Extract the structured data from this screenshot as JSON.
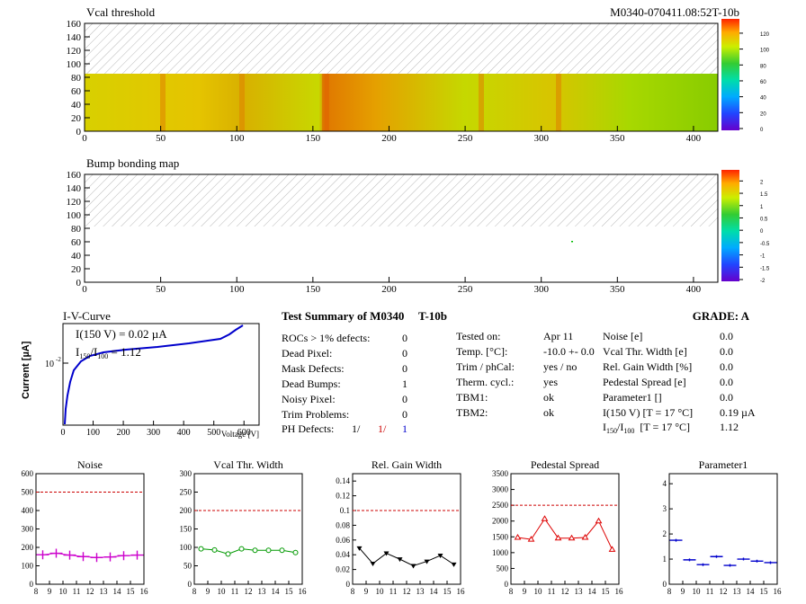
{
  "header": {
    "module_id": "M0340-070411.08:52T-10b"
  },
  "maps": [
    {
      "title": "Vcal threshold",
      "xticks": [
        "0",
        "50",
        "100",
        "150",
        "200",
        "250",
        "300",
        "350",
        "400"
      ],
      "yticks": [
        "0",
        "20",
        "40",
        "60",
        "80",
        "100",
        "120",
        "140",
        "160"
      ],
      "palette_ticks": [
        "0",
        "20",
        "40",
        "60",
        "80",
        "100",
        "120"
      ],
      "xlim": [
        0,
        416
      ],
      "ylim": [
        0,
        160
      ]
    },
    {
      "title": "Bump bonding map",
      "xticks": [
        "0",
        "50",
        "100",
        "150",
        "200",
        "250",
        "300",
        "350",
        "400"
      ],
      "yticks": [
        "0",
        "20",
        "40",
        "60",
        "80",
        "100",
        "120",
        "140",
        "160"
      ],
      "palette_ticks": [
        "-2",
        "-1.5",
        "-1",
        "-0.5",
        "0",
        "0.5",
        "1",
        "1.5",
        "2"
      ],
      "xlim": [
        0,
        416
      ],
      "ylim": [
        0,
        160
      ]
    }
  ],
  "iv": {
    "title": "I-V-Curve",
    "ylabel": "Current [µA]",
    "xlabel": "Voltage [V]",
    "ytick": "10",
    "ytick_exp": "-2",
    "xticks": [
      "0",
      "100",
      "200",
      "300",
      "400",
      "500",
      "600"
    ],
    "annot1": "I(150 V) = 0.02 µA",
    "annot2_a": "I",
    "annot2_sub1": "150",
    "annot2_b": "/I",
    "annot2_sub2": "100",
    "annot2_c": " =  1.12"
  },
  "summary": {
    "title": "Test Summary of M0340",
    "tag": "T-10b",
    "grade": "GRADE:  A",
    "rows": [
      {
        "label": "ROCs > 1% defects:",
        "value": "0"
      },
      {
        "label": "Dead Pixel:",
        "value": "0"
      },
      {
        "label": "Mask Defects:",
        "value": "0"
      },
      {
        "label": "Dead Bumps:",
        "value": "1"
      },
      {
        "label": "Noisy Pixel:",
        "value": "0"
      },
      {
        "label": "Trim Problems:",
        "value": "0"
      }
    ],
    "ph_label": "PH Defects:",
    "ph_vals": [
      "1/",
      "1/",
      "1"
    ],
    "mid": [
      {
        "label": "Tested on:",
        "value": "Apr 11"
      },
      {
        "label": "Temp. [°C]:",
        "value": "-10.0 +- 0.0"
      },
      {
        "label": "Trim / phCal:",
        "value": "yes / no"
      },
      {
        "label": "Therm. cycl.:",
        "value": "yes"
      },
      {
        "label": "TBM1:",
        "value": "ok"
      },
      {
        "label": "TBM2:",
        "value": "ok"
      }
    ],
    "right": [
      {
        "label": "Noise [e]",
        "value": "0.0"
      },
      {
        "label": "Vcal Thr. Width [e]",
        "value": "0.0"
      },
      {
        "label": "Rel. Gain Width [%]",
        "value": "0.0"
      },
      {
        "label": "Pedestal Spread [e]",
        "value": "0.0"
      },
      {
        "label": "Parameter1 []",
        "value": "0.0"
      },
      {
        "label": "I(150 V) [T = 17 °C]",
        "value": "0.19 µA"
      }
    ],
    "ratio_value": "1.12",
    "ratio_tail": "[T = 17 °C]"
  },
  "chart_data": [
    {
      "type": "line",
      "title": "Noise",
      "x": [
        8.5,
        9.5,
        10.5,
        11.5,
        12.5,
        13.5,
        14.5,
        15.5
      ],
      "values": [
        160,
        168,
        158,
        150,
        145,
        148,
        155,
        158
      ],
      "ylim": [
        0,
        600
      ],
      "xlim": [
        8,
        16
      ],
      "yticks": [
        "0",
        "100",
        "200",
        "300",
        "400",
        "500",
        "600"
      ],
      "xticks": [
        "8",
        "9",
        "10",
        "11",
        "12",
        "13",
        "14",
        "15",
        "16"
      ],
      "ref": 500,
      "color": "#cc00cc",
      "marker": "plus"
    },
    {
      "type": "line",
      "title": "Vcal Thr. Width",
      "x": [
        8.5,
        9.5,
        10.5,
        11.5,
        12.5,
        13.5,
        14.5,
        15.5
      ],
      "values": [
        96,
        93,
        82,
        96,
        92,
        92,
        92,
        86
      ],
      "ylim": [
        0,
        300
      ],
      "xlim": [
        8,
        16
      ],
      "yticks": [
        "0",
        "50",
        "100",
        "150",
        "200",
        "250",
        "300"
      ],
      "xticks": [
        "8",
        "9",
        "10",
        "11",
        "12",
        "13",
        "14",
        "15",
        "16"
      ],
      "ref": 200,
      "color": "#009900",
      "marker": "circle"
    },
    {
      "type": "line",
      "title": "Rel. Gain Width",
      "x": [
        8.5,
        9.5,
        10.5,
        11.5,
        12.5,
        13.5,
        14.5,
        15.5
      ],
      "values": [
        0.049,
        0.028,
        0.042,
        0.034,
        0.025,
        0.031,
        0.039,
        0.027
      ],
      "ylim": [
        0,
        0.15
      ],
      "xlim": [
        8,
        16
      ],
      "yticks": [
        "0",
        "0.02",
        "0.04",
        "0.06",
        "0.08",
        "0.1",
        "0.12",
        "0.14"
      ],
      "xticks": [
        "8",
        "9",
        "10",
        "11",
        "12",
        "13",
        "14",
        "15",
        "16"
      ],
      "ref": 0.1,
      "color": "#000000",
      "marker": "tri-down"
    },
    {
      "type": "line",
      "title": "Pedestal Spread",
      "x": [
        8.5,
        9.5,
        10.5,
        11.5,
        12.5,
        13.5,
        14.5,
        15.5
      ],
      "values": [
        1480,
        1420,
        2070,
        1460,
        1460,
        1480,
        2000,
        1100
      ],
      "ylim": [
        0,
        3500
      ],
      "xlim": [
        8,
        16
      ],
      "yticks": [
        "0",
        "500",
        "1000",
        "1500",
        "2000",
        "2500",
        "3000",
        "3500"
      ],
      "xticks": [
        "8",
        "9",
        "10",
        "11",
        "12",
        "13",
        "14",
        "15",
        "16"
      ],
      "ref": 2500,
      "color": "#dd0000",
      "marker": "tri-up"
    },
    {
      "type": "scatter",
      "title": "Parameter1",
      "x": [
        8.5,
        9.5,
        10.5,
        11.5,
        12.5,
        13.5,
        14.5,
        15.5
      ],
      "values": [
        1.75,
        0.97,
        0.78,
        1.1,
        0.75,
        1.0,
        0.92,
        0.86
      ],
      "ylim": [
        0,
        4.4
      ],
      "xlim": [
        8,
        16
      ],
      "yticks": [
        "0",
        "1",
        "2",
        "3",
        "4"
      ],
      "xticks": [
        "8",
        "9",
        "10",
        "11",
        "12",
        "13",
        "14",
        "15",
        "16"
      ],
      "color": "#0000cc",
      "marker": "hbar"
    }
  ]
}
